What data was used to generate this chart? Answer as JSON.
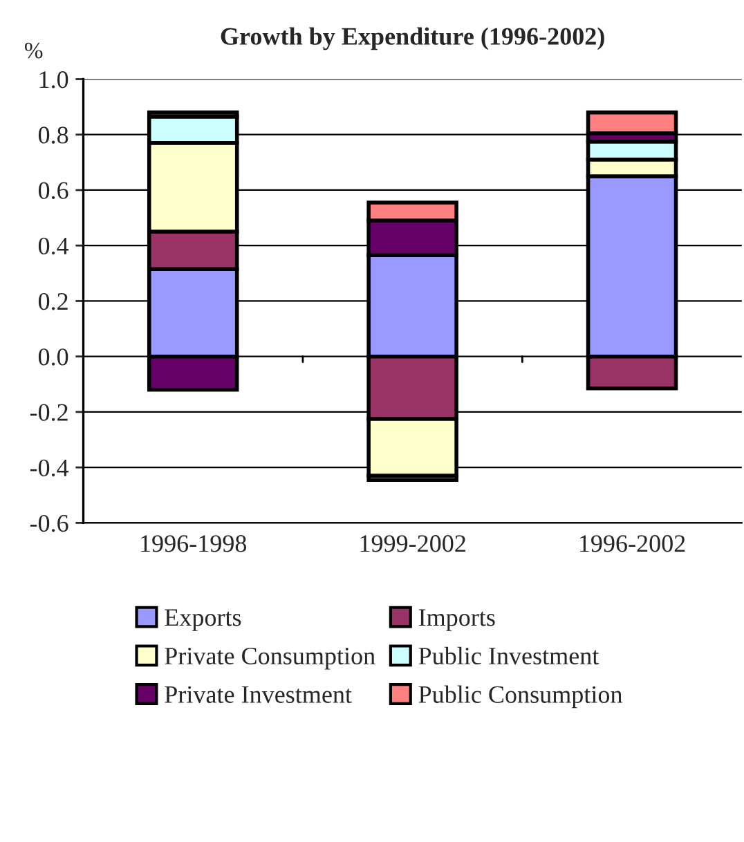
{
  "chart_data": {
    "type": "bar",
    "title": "Growth by Expenditure (1996-2002)",
    "ylabel": "%",
    "categories": [
      "1996-1998",
      "1999-2002",
      "1996-2002"
    ],
    "stacked": true,
    "series": [
      {
        "name": "Exports",
        "color": "#9999ff",
        "values": [
          0.315,
          0.365,
          0.65
        ]
      },
      {
        "name": "Imports",
        "color": "#993366",
        "values": [
          0.135,
          -0.225,
          -0.115
        ]
      },
      {
        "name": "Private Consumption",
        "color": "#ffffcc",
        "values": [
          0.32,
          -0.205,
          0.06
        ]
      },
      {
        "name": "Public Investment",
        "color": "#ccffff",
        "values": [
          0.095,
          -0.015,
          0.065
        ]
      },
      {
        "name": "Private Investment",
        "color": "#660066",
        "values": [
          -0.12,
          0.125,
          0.03
        ]
      },
      {
        "name": "Public Consumption",
        "color": "#ff8080",
        "values": [
          0.015,
          0.065,
          0.075
        ]
      }
    ],
    "ylim": [
      -0.6,
      1.0
    ],
    "yticks": [
      {
        "value": -0.6,
        "label": "-0.6"
      },
      {
        "value": -0.4,
        "label": "-0.4"
      },
      {
        "value": -0.2,
        "label": "-0.2"
      },
      {
        "value": 0.0,
        "label": "0.0"
      },
      {
        "value": 0.2,
        "label": "0.2"
      },
      {
        "value": 0.4,
        "label": "0.4"
      },
      {
        "value": 0.6,
        "label": "0.6"
      },
      {
        "value": 0.8,
        "label": "0.8"
      },
      {
        "value": 1.0,
        "label": "1.0"
      }
    ],
    "grid": "y",
    "legend": "bottom"
  }
}
